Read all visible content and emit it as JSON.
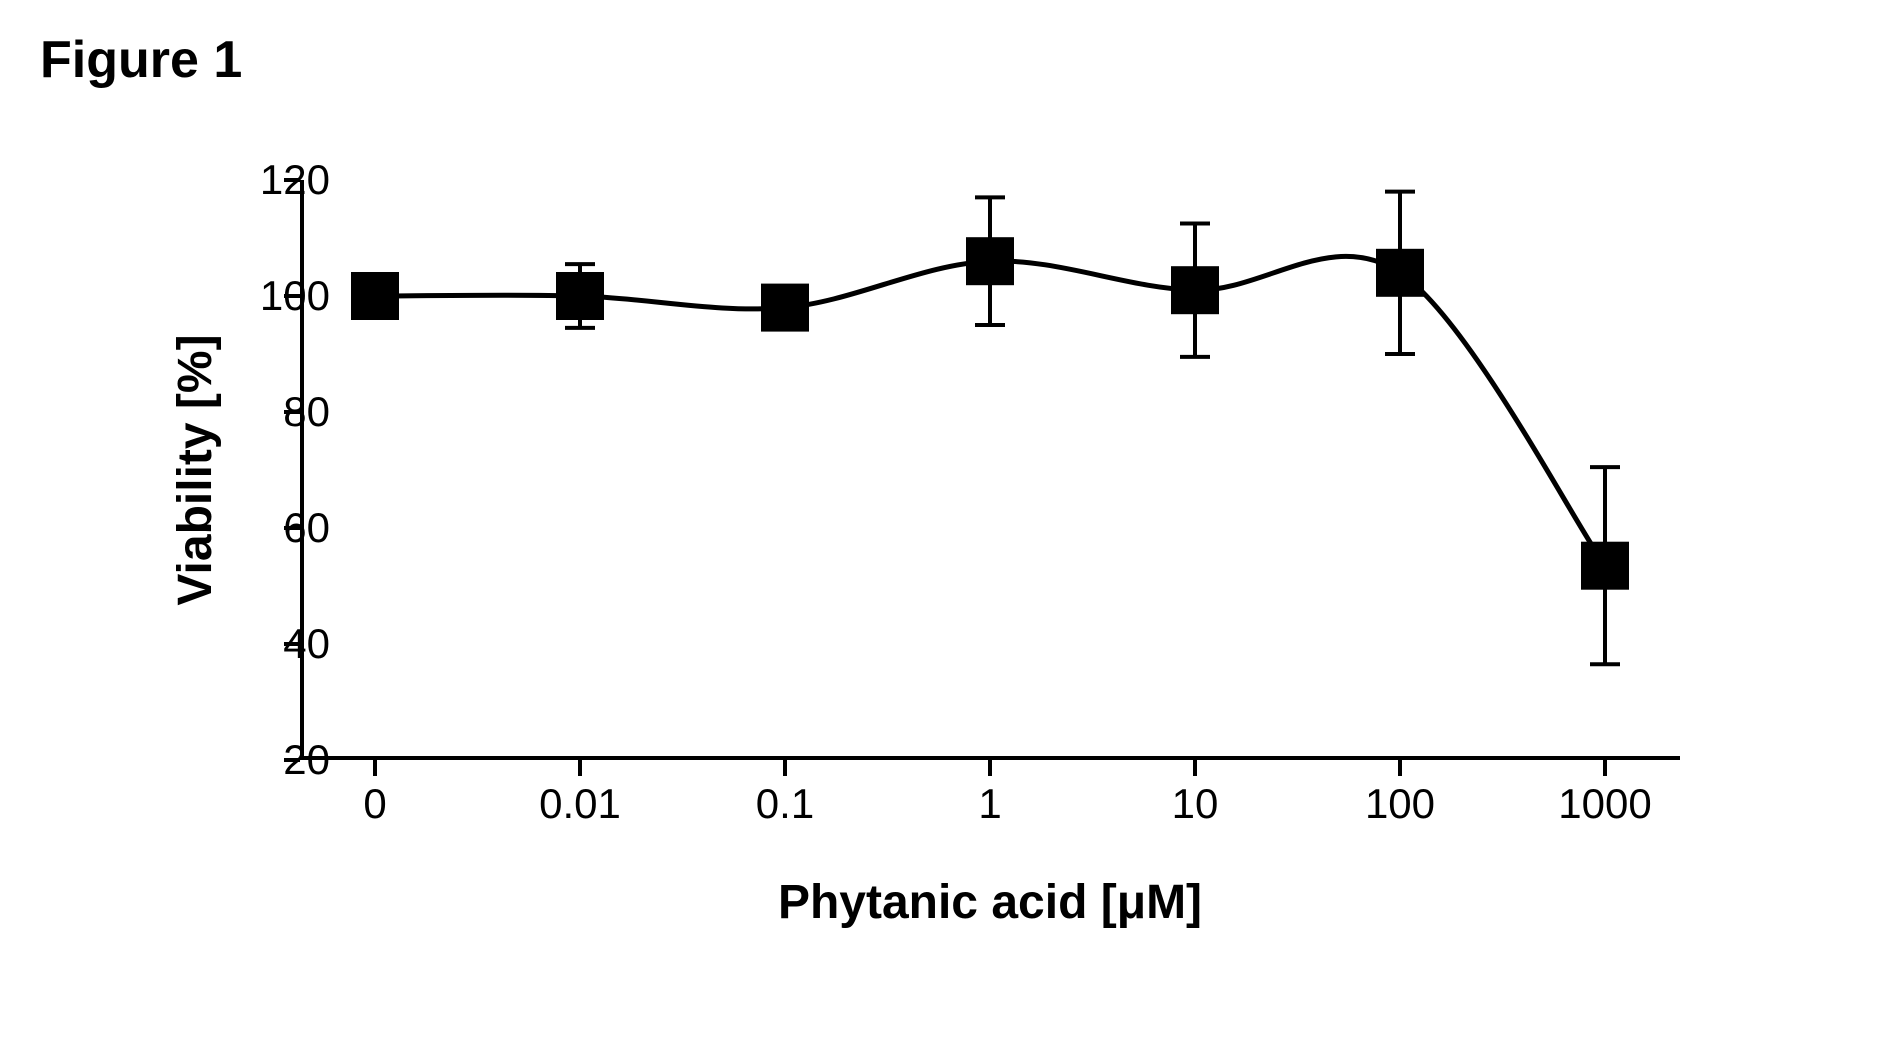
{
  "figure_title": "Figure 1",
  "chart": {
    "type": "line_scatter_errorbar",
    "xlabel": "Phytanic acid [μM]",
    "ylabel": "Viability [%]",
    "x_categories": [
      "0",
      "0.01",
      "0.1",
      "1",
      "10",
      "100",
      "1000"
    ],
    "y_values": [
      100,
      100,
      98,
      106,
      101,
      104,
      53.5
    ],
    "y_errors": [
      3,
      5.5,
      3,
      11,
      11.5,
      14,
      17
    ],
    "ylim": [
      20,
      120
    ],
    "ytick_step": 20,
    "yticks": [
      20,
      40,
      60,
      80,
      100,
      120
    ],
    "marker_size": 48,
    "marker_shape": "square",
    "marker_color": "#000000",
    "line_color": "#000000",
    "line_width": 5,
    "error_cap_width": 30,
    "error_bar_width": 4,
    "background_color": "#ffffff",
    "axis_color": "#000000",
    "axis_width": 4,
    "tick_length": 16,
    "font_size_labels": 42,
    "font_size_titles": 48,
    "font_weight_titles": "bold",
    "title_fontsize": 52
  }
}
